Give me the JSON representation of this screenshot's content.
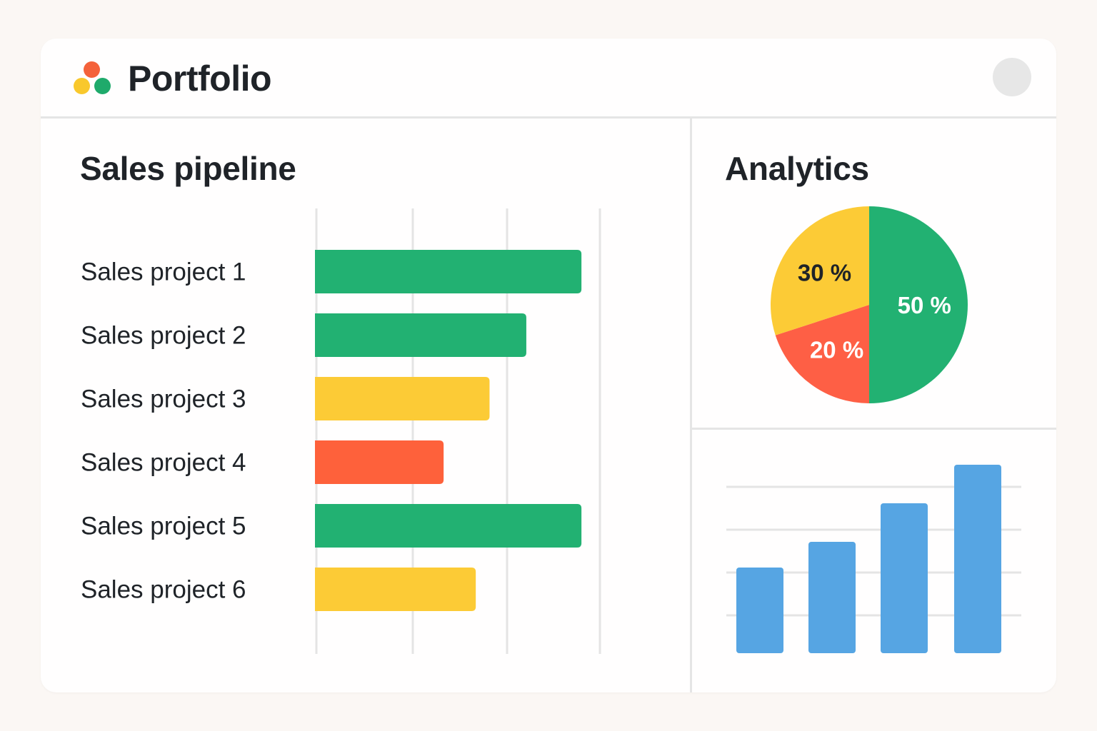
{
  "header": {
    "app_title": "Portfolio",
    "logo_colors": [
      "#f4623a",
      "#f9c82c",
      "#1faa6b"
    ]
  },
  "pipeline": {
    "title": "Sales pipeline",
    "chart_data": {
      "type": "bar",
      "orientation": "horizontal",
      "categories": [
        "Sales project 1",
        "Sales project 2",
        "Sales project 3",
        "Sales project 4",
        "Sales project 5",
        "Sales project 6"
      ],
      "values": [
        2.9,
        2.3,
        1.9,
        1.4,
        2.9,
        1.75
      ],
      "xlim": [
        0,
        3
      ],
      "grid": true,
      "colors": [
        "#22b172",
        "#22b172",
        "#fccb36",
        "#fe613b",
        "#22b172",
        "#fccb36"
      ]
    }
  },
  "analytics": {
    "title": "Analytics",
    "pie": {
      "type": "pie",
      "slices": [
        {
          "label": "50 %",
          "value": 50,
          "color": "#22b172",
          "text_color": "#ffffff"
        },
        {
          "label": "20 %",
          "value": 20,
          "color": "#fe5f45",
          "text_color": "#ffffff"
        },
        {
          "label": "30 %",
          "value": 30,
          "color": "#fccb36",
          "text_color": "#1f2328"
        }
      ]
    },
    "bars": {
      "type": "bar",
      "values": [
        2,
        2.6,
        3.5,
        4.4
      ],
      "ylim": [
        0,
        4.4
      ],
      "grid": true,
      "color": "#56a5e3"
    }
  }
}
